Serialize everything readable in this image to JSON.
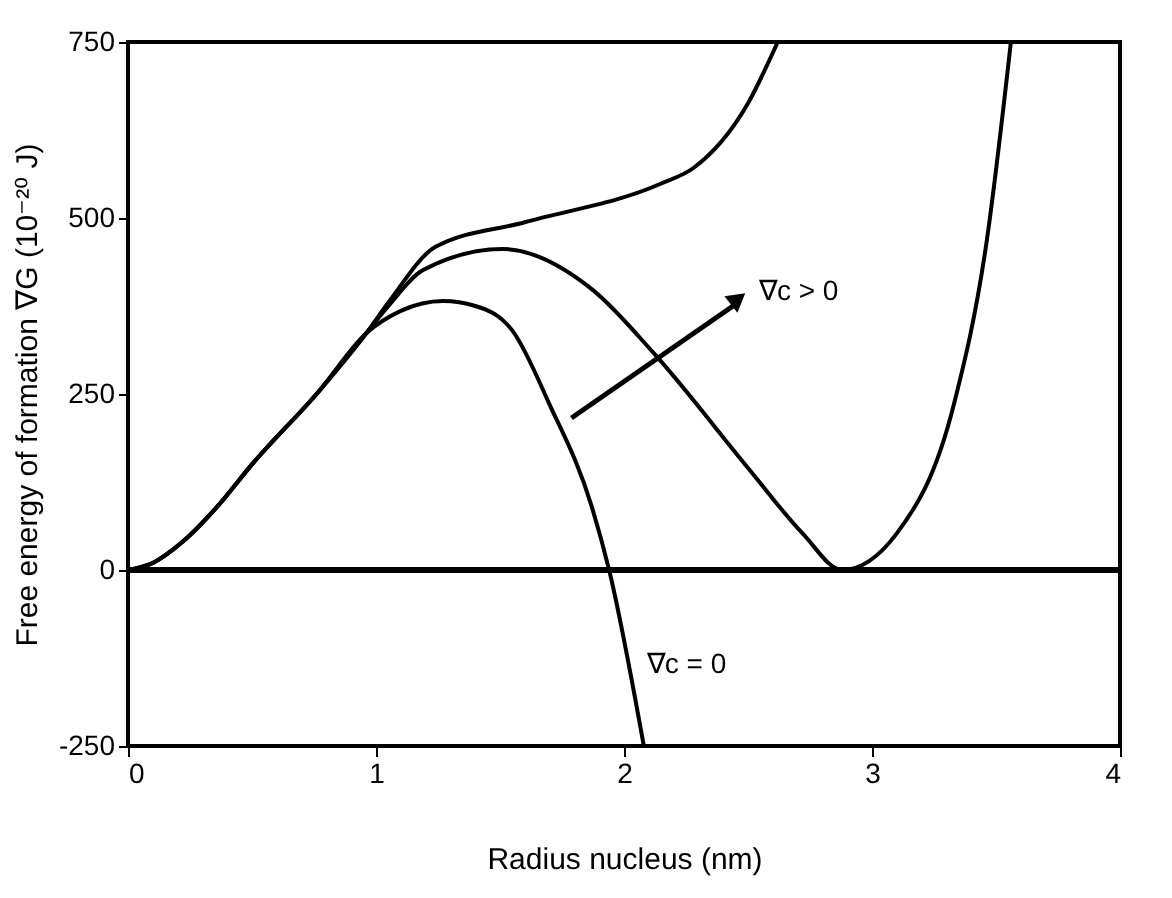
{
  "chart_data": {
    "type": "line",
    "xlabel": "Radius nucleus (nm)",
    "ylabel": "Free energy of formation ∇G (10⁻²⁰ J)",
    "xlim": [
      0,
      4
    ],
    "xticks": [
      0,
      1,
      2,
      3,
      4
    ],
    "ylim": [
      -250,
      750
    ],
    "yticks": [
      -250,
      0,
      250,
      500,
      750
    ],
    "grid": false,
    "line_style": "solid",
    "marker": "none",
    "series": [
      {
        "color": "#000000",
        "x": [
          0,
          0.1,
          0.22,
          0.36,
          0.5,
          0.77,
          0.96,
          1.1,
          1.27,
          1.4,
          1.55,
          1.7,
          1.87,
          1.94,
          2.08
        ],
        "values": [
          0,
          10,
          40,
          90,
          150,
          254,
          336,
          368,
          382,
          375,
          340,
          235,
          90,
          0,
          -250
        ]
      },
      {
        "color": "#000000",
        "x": [
          0,
          0.1,
          0.22,
          0.36,
          0.5,
          0.77,
          0.96,
          1.05,
          1.19,
          1.51,
          1.87,
          2.12,
          2.5,
          2.72,
          2.88,
          3.1,
          3.33,
          3.46,
          3.56
        ],
        "values": [
          0,
          10,
          40,
          90,
          150,
          254,
          336,
          375,
          426,
          456,
          399,
          308,
          145,
          52,
          0,
          52,
          235,
          461,
          750
        ]
      },
      {
        "color": "#000000",
        "x": [
          0,
          0.1,
          0.22,
          0.36,
          0.5,
          0.77,
          0.96,
          1.05,
          1.24,
          1.6,
          2.15,
          2.28,
          2.5,
          2.62
        ],
        "values": [
          0,
          10,
          40,
          90,
          150,
          254,
          336,
          380,
          459,
          494,
          549,
          571,
          663,
          750
        ]
      }
    ],
    "ref_lines": [
      {
        "axis": "y",
        "value": 0,
        "color": "#000000"
      }
    ],
    "annotations": [
      "∇c > 0",
      "∇c = 0"
    ]
  }
}
